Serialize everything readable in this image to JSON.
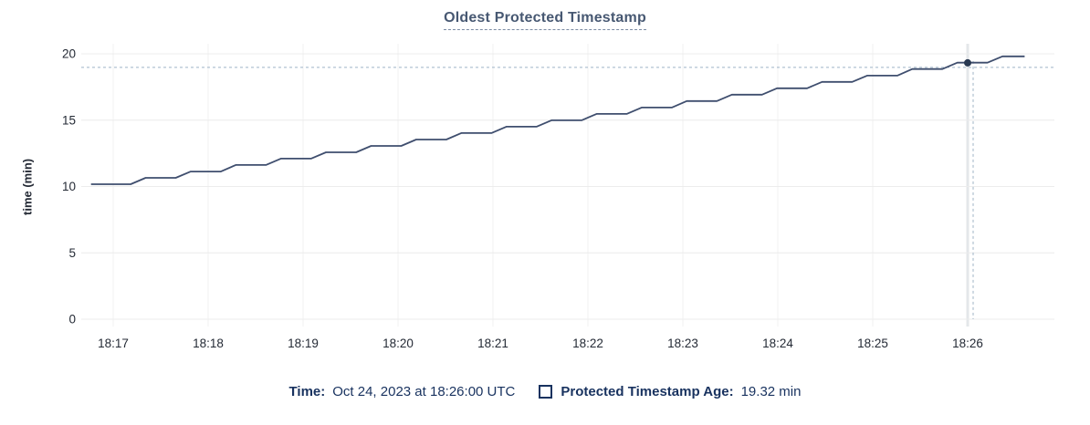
{
  "title": "Oldest Protected Timestamp",
  "y_axis_title": "time (min)",
  "chart_data": {
    "type": "line",
    "title": "Oldest Protected Timestamp",
    "xlabel": "",
    "ylabel": "time (min)",
    "ylim": [
      0,
      20
    ],
    "yticks": [
      0,
      5,
      10,
      15,
      20
    ],
    "xticks": [
      "18:17",
      "18:18",
      "18:19",
      "18:20",
      "18:21",
      "18:22",
      "18:23",
      "18:24",
      "18:25",
      "18:26"
    ],
    "x_unit": "seconds since 18:17:00",
    "grid": true,
    "legend_position": "bottom",
    "series": [
      {
        "name": "Protected Timestamp Age",
        "unit": "min",
        "color": "#3f4e6e",
        "points": [
          [
            -14,
            10.17
          ],
          [
            11,
            10.17
          ],
          [
            20.5,
            10.65
          ],
          [
            39.5,
            10.65
          ],
          [
            49,
            11.13
          ],
          [
            68,
            11.13
          ],
          [
            77.5,
            11.62
          ],
          [
            96.5,
            11.62
          ],
          [
            106,
            12.1
          ],
          [
            125,
            12.1
          ],
          [
            134.5,
            12.58
          ],
          [
            153.5,
            12.58
          ],
          [
            163,
            13.06
          ],
          [
            182,
            13.06
          ],
          [
            191.5,
            13.54
          ],
          [
            210.5,
            13.54
          ],
          [
            220,
            14.03
          ],
          [
            239,
            14.03
          ],
          [
            248.5,
            14.51
          ],
          [
            267.5,
            14.51
          ],
          [
            277,
            14.99
          ],
          [
            296,
            14.99
          ],
          [
            305.5,
            15.47
          ],
          [
            324.5,
            15.47
          ],
          [
            334,
            15.95
          ],
          [
            353,
            15.95
          ],
          [
            362.5,
            16.44
          ],
          [
            381.5,
            16.44
          ],
          [
            391,
            16.92
          ],
          [
            410,
            16.92
          ],
          [
            419.5,
            17.4
          ],
          [
            438.5,
            17.4
          ],
          [
            448,
            17.88
          ],
          [
            467,
            17.88
          ],
          [
            476.5,
            18.36
          ],
          [
            495.5,
            18.36
          ],
          [
            505,
            18.85
          ],
          [
            524,
            18.85
          ],
          [
            533.5,
            19.33
          ],
          [
            552.5,
            19.33
          ],
          [
            562,
            19.81
          ],
          [
            576,
            19.81
          ]
        ]
      }
    ],
    "hover": {
      "t": 540,
      "time_label": "18:26",
      "value": 19.32
    }
  },
  "legend": {
    "time_label": "Time:",
    "time_value": "Oct 24, 2023 at 18:26:00 UTC",
    "series_label": "Protected Timestamp Age:",
    "series_value": "19.32 min"
  },
  "colors": {
    "title": "#475872",
    "line": "#3f4e6e",
    "dot": "#293952",
    "grid_h": "#ececec",
    "grid_v": "#f0f0f0",
    "grid_hover": "#e4e7ea",
    "crosshair": "#9fb3c6",
    "legend_text": "#18325f",
    "tick_text": "#242a35"
  }
}
